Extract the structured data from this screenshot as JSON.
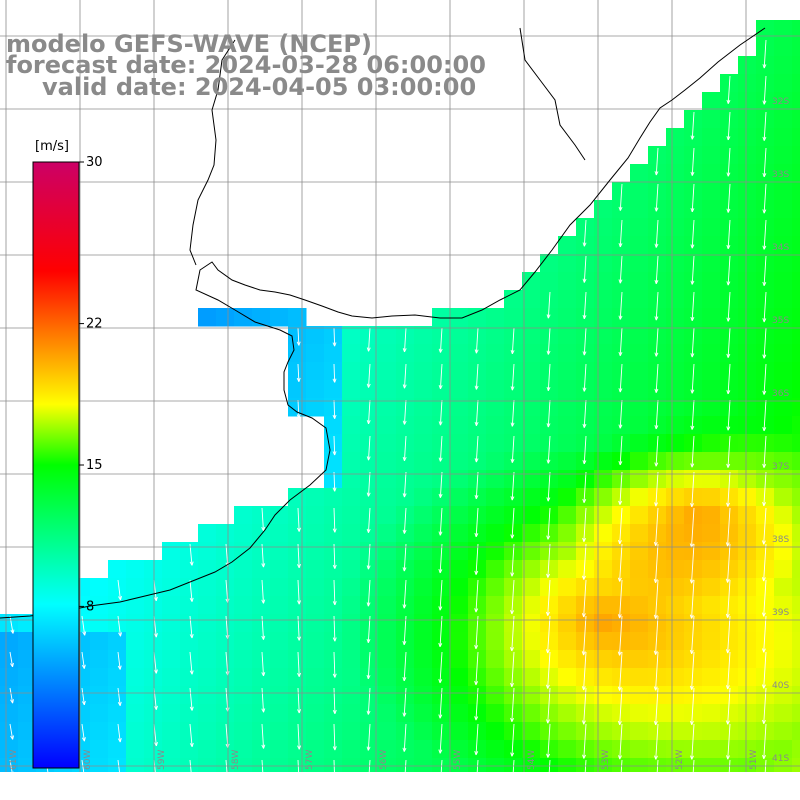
{
  "title": {
    "model": "modelo GEFS-WAVE (NCEP)",
    "forecast": "forecast date: 2024-03-28 06:00:00",
    "valid": "valid date: 2024-04-05 03:00:00"
  },
  "colorbar": {
    "unit": "[m/s]",
    "ticks": [
      "30",
      "22",
      "15",
      "8"
    ],
    "min_value": 0,
    "max_value": 30,
    "colors": [
      "#0000ff",
      "#00ffff",
      "#00ff00",
      "#ffff00",
      "#ff0000",
      "#cc0066"
    ]
  },
  "lat_labels": [
    "32S",
    "33S",
    "34S",
    "35S",
    "36S",
    "37S",
    "38S",
    "39S",
    "40S",
    "41S"
  ],
  "lon_labels": [
    "61W",
    "60W",
    "59W",
    "58W",
    "57W",
    "56W",
    "55W",
    "54W",
    "53W",
    "52W",
    "51W"
  ],
  "land_color": "#ffffff",
  "grid_color": "#8c8c8c",
  "arrow_color": "#ffffff"
}
